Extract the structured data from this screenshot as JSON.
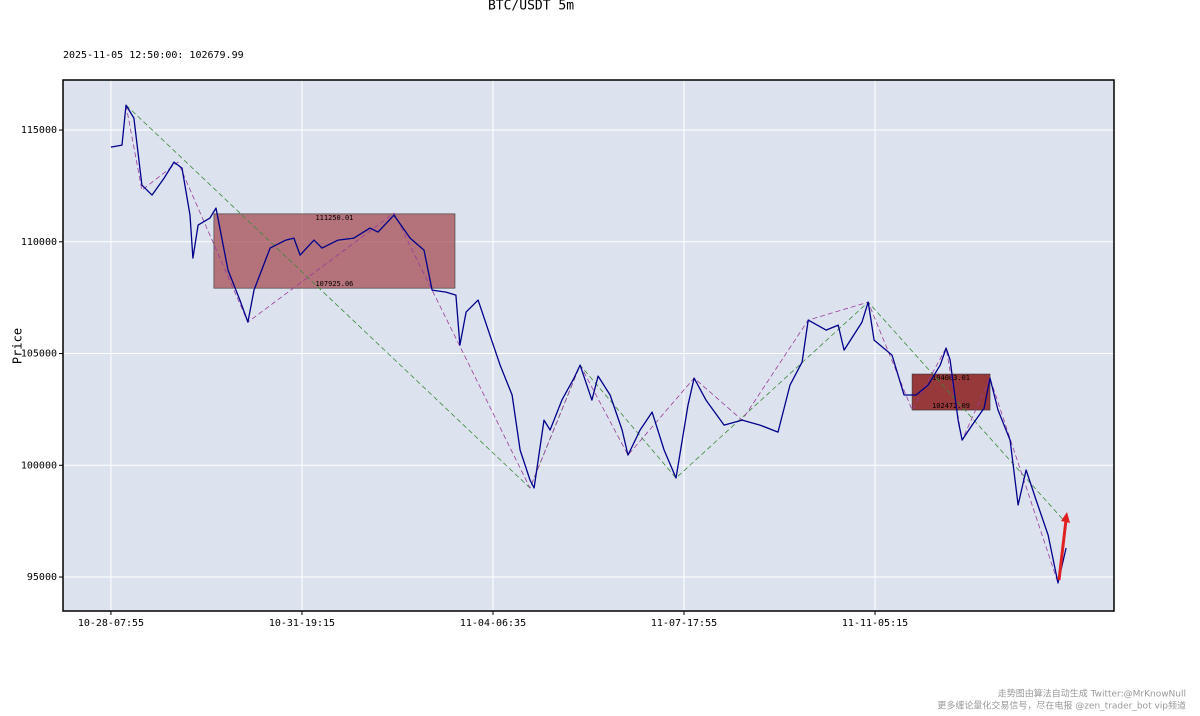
{
  "chart_data": {
    "type": "line",
    "title": "BTC/USDT 5m",
    "subtitle": "2025-11-05 12:50:00: 102679.99",
    "y_label": "Price",
    "footer": [
      "走势图由算法自动生成  Twitter:@MrKnowNull",
      "更多缠论量化交易信号，尽在电报 @zen_trader_bot vip频道"
    ],
    "xlim": [
      -251,
      5251
    ],
    "xticks": [
      {
        "value": 0,
        "label": "10-28-07:55"
      },
      {
        "value": 1000,
        "label": "10-31-19:15"
      },
      {
        "value": 2000,
        "label": "11-04-06:35"
      },
      {
        "value": 3000,
        "label": "11-07-17:55"
      },
      {
        "value": 4000,
        "label": "11-11-05:15"
      }
    ],
    "ylim": [
      93480,
      117240
    ],
    "yticks": [
      95000,
      100000,
      105000,
      110000,
      115000
    ],
    "grid": true,
    "background": "#dde3ee",
    "zones": [
      {
        "x": [
          539,
          1801
        ],
        "y": [
          107925.06,
          111250.01
        ],
        "color": "#a3474f",
        "opacity": 0.72
      },
      {
        "x": [
          4194,
          4602
        ],
        "y": [
          102472.09,
          104083.01
        ],
        "color": "#8b1a1a",
        "opacity": 0.85
      }
    ],
    "series": [
      {
        "color": "#00008b",
        "dashed": false,
        "width": 1.3,
        "x": [
          0,
          58,
          79,
          120,
          162,
          215,
          278,
          330,
          372,
          414,
          429,
          456,
          518,
          550,
          613,
          675,
          717,
          749,
          833,
          916,
          958,
          990,
          1063,
          1105,
          1189,
          1272,
          1356,
          1398,
          1482,
          1566,
          1639,
          1681,
          1754,
          1806,
          1827,
          1859,
          1922,
          1984,
          2037,
          2100,
          2142,
          2194,
          2215,
          2267,
          2299,
          2361,
          2424,
          2456,
          2518,
          2550,
          2613,
          2676,
          2707,
          2770,
          2833,
          2896,
          2958,
          3021,
          3053,
          3115,
          3210,
          3304,
          3398,
          3492,
          3555,
          3618,
          3650,
          3744,
          3807,
          3838,
          3932,
          3964,
          3995,
          4089,
          4152,
          4215,
          4278,
          4341,
          4372,
          4393,
          4435,
          4456,
          4508,
          4571,
          4602,
          4644,
          4707,
          4749,
          4791,
          4843,
          4906,
          4958,
          5000
        ],
        "values": [
          114238,
          114328,
          116117,
          115536,
          112538,
          112091,
          112851,
          113567,
          113299,
          111196,
          109272,
          110748,
          111062,
          111509,
          108735,
          107393,
          106409,
          107840,
          109719,
          110077,
          110167,
          109406,
          110077,
          109719,
          110077,
          110167,
          110614,
          110435,
          111196,
          110167,
          109630,
          107840,
          107751,
          107617,
          105380,
          106856,
          107393,
          105827,
          104485,
          103143,
          100682,
          99340,
          98982,
          102024,
          101577,
          102919,
          103903,
          104485,
          102919,
          103993,
          103143,
          101577,
          100458,
          101577,
          102382,
          100682,
          99429,
          102695,
          103903,
          102919,
          101800,
          102024,
          101800,
          101487,
          103590,
          104619,
          106498,
          106051,
          106274,
          105156,
          106409,
          107304,
          105603,
          104932,
          103143,
          103143,
          103590,
          104485,
          105245,
          104709,
          102024,
          101129,
          101800,
          102561,
          103903,
          102472,
          101129,
          98221,
          99787,
          98445,
          96879,
          94732,
          96297
        ]
      },
      {
        "color": "#9a3c9a",
        "dashed": true,
        "width": 0.8,
        "x": [
          79,
          162,
          351,
          717,
          1482,
          2194,
          2456,
          2707,
          3053,
          3304,
          3650,
          3964,
          4194,
          4372,
          4456,
          4602,
          4958
        ],
        "values": [
          116117,
          112314,
          113567,
          106409,
          111286,
          98982,
          104485,
          100458,
          103903,
          102024,
          106498,
          107304,
          102472,
          105245,
          101129,
          103903,
          94732
        ]
      },
      {
        "color": "#3a8a3a",
        "dashed": true,
        "width": 0.8,
        "x": [
          79,
          2194,
          2456,
          2958,
          3964,
          5000
        ],
        "values": [
          116117,
          98982,
          104485,
          99429,
          107304,
          97416
        ]
      }
    ]
  }
}
